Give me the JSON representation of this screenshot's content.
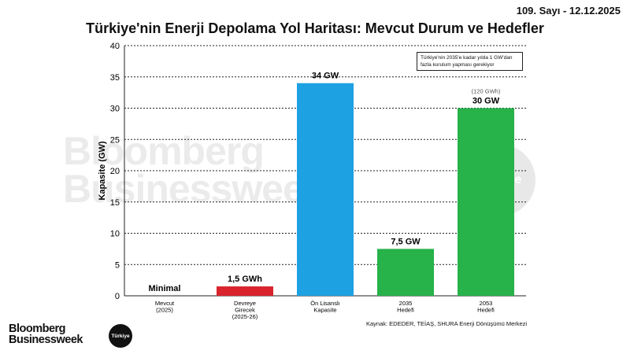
{
  "header": {
    "issue": "109. Sayı - 12.12.2025"
  },
  "watermark": {
    "line1": "Bloomberg",
    "line2": "Businessweek",
    "badge": "Türkiye"
  },
  "note": "Türkiye'nin 2035'e kadar yılda 1 GW'dan fazla kurulum yapması gerekiyor",
  "source": "Kaynak: EDEDER, TEİAŞ, SHURA Enerji Dönüşümü Merkezi",
  "logo": {
    "line1": "Bloomberg",
    "line2": "Businessweek",
    "badge": "Türkiye"
  },
  "colors": {
    "red": "#d9232d",
    "blue": "#1da1e2",
    "green": "#27b24a",
    "grid": "#222222"
  },
  "chart_data": {
    "type": "bar",
    "title": "Türkiye'nin Enerji Depolama Yol Haritası: Mevcut Durum ve Hedefler",
    "ylabel": "Kapasite (GW)",
    "ylim": [
      0,
      40
    ],
    "yticks": [
      0,
      5,
      10,
      15,
      20,
      25,
      30,
      35,
      40
    ],
    "grid": true,
    "categories": [
      [
        "Mevcut",
        "(2025)"
      ],
      [
        "Devreye",
        "Girecek",
        "(2025-26)"
      ],
      [
        "Ön Lisanslı",
        "Kapasite"
      ],
      [
        "2035",
        "Hedefi"
      ],
      [
        "2053",
        "Hedefi"
      ]
    ],
    "values": [
      0,
      1.5,
      34,
      7.5,
      30
    ],
    "bar_colors": [
      "#d9232d",
      "#d9232d",
      "#1da1e2",
      "#27b24a",
      "#27b24a"
    ],
    "data_labels": [
      "Minimal",
      "1,5 GWh",
      "34 GW",
      "7,5 GW",
      "30 GW"
    ],
    "annotations": [
      "",
      "",
      "",
      "",
      "(120 GWh)"
    ]
  }
}
